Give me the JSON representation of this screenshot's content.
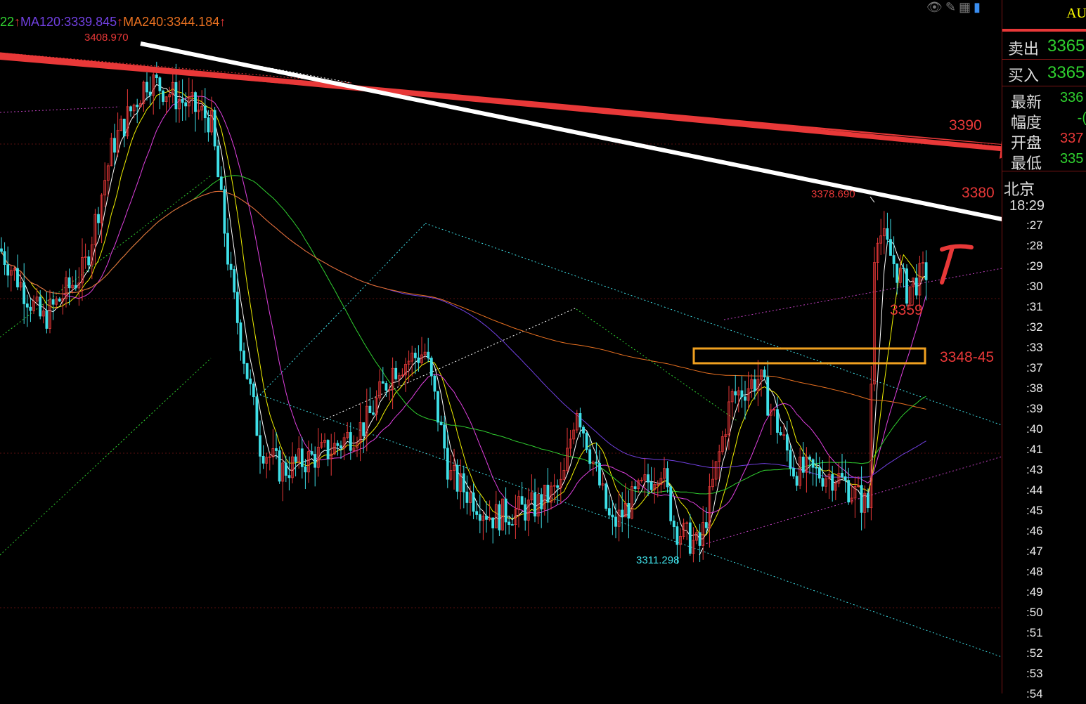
{
  "legend": {
    "ma_prev": "22",
    "ma120": "MA120:3339.845",
    "ma240": "MA240:3344.184",
    "arrow": "↑"
  },
  "colors": {
    "up": "#e83838",
    "down": "#3fe0e8",
    "ma5": "#ffffff",
    "ma10": "#f0f000",
    "ma20": "#e040e0",
    "ma60": "#30d030",
    "ma120": "#7040e0",
    "ma240": "#e87020",
    "buy_sell": "#2fd12f",
    "highlight_box": "#f0a020"
  },
  "price_labels": {
    "high": "3408.970",
    "mid_high": "3378.690",
    "low": "3311.298"
  },
  "annotations": {
    "a3390": "3390",
    "a3380": "3380",
    "a3359": "3359",
    "a3348": "3348-45"
  },
  "toolbar": {
    "icons": [
      "eye-slash-icon",
      "pencil-icon",
      "grid-icon",
      "panel-icon"
    ]
  },
  "quote_panel": {
    "symbol": "AU",
    "sell_label": "卖出",
    "sell_value": "3365",
    "buy_label": "买入",
    "buy_value": "3365",
    "latest_label": "最新",
    "latest_value": "336",
    "change_label": "幅度",
    "change_value": "-(",
    "open_label": "开盘",
    "open_value": "337",
    "low_label": "最低",
    "low_value": "335",
    "city": "北京",
    "clock": "18:29",
    "tick_times": [
      ":27",
      ":28",
      ":29",
      ":30",
      ":31",
      ":32",
      ":33",
      ":37",
      ":38",
      ":39",
      ":40",
      ":41",
      ":43",
      ":44",
      ":45",
      ":46",
      ":47",
      ":48",
      ":49",
      ":50",
      ":51",
      ":52",
      ":53",
      ":54"
    ]
  }
}
